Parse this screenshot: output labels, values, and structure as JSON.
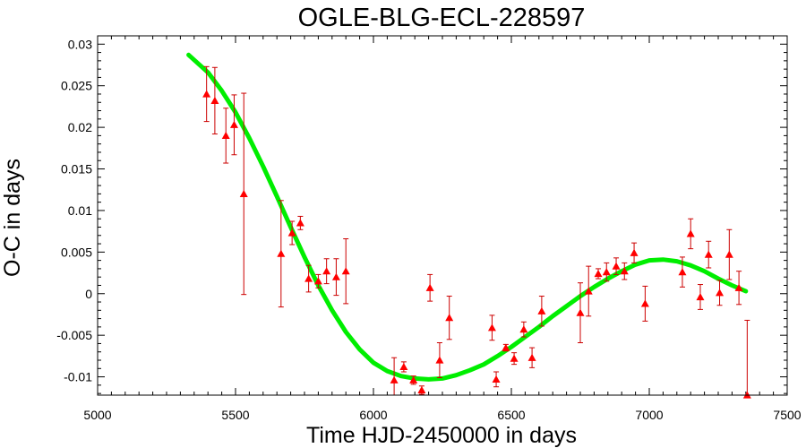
{
  "chart_data": {
    "type": "scatter",
    "title": "OGLE-BLG-ECL-228597",
    "xlabel": "Time HJD-2450000 in days",
    "ylabel": "O-C in days",
    "xlim": [
      5000,
      7500
    ],
    "ylim": [
      -0.0122,
      0.031
    ],
    "x_ticks": [
      5000,
      5500,
      6000,
      6500,
      7000,
      7500
    ],
    "y_ticks": [
      -0.01,
      -0.005,
      0,
      0.005,
      0.01,
      0.015,
      0.02,
      0.025,
      0.03
    ],
    "x_tick_labels": [
      "5000",
      "5500",
      "6000",
      "6500",
      "7000",
      "7500"
    ],
    "y_tick_labels": [
      "-0.01",
      "-0.005",
      "0",
      "0.005",
      "0.01",
      "0.015",
      "0.02",
      "0.025",
      "0.03"
    ],
    "grid": false,
    "colors": {
      "points": "#ff0000",
      "errorbars": "#cc0000",
      "fit": "#00ee00"
    },
    "series": [
      {
        "kind": "points-with-errorbars",
        "marker": "triangle",
        "points": [
          {
            "x": 5395,
            "y": 0.024,
            "err": 0.0033
          },
          {
            "x": 5425,
            "y": 0.0232,
            "err": 0.004
          },
          {
            "x": 5465,
            "y": 0.019,
            "err": 0.0033
          },
          {
            "x": 5495,
            "y": 0.0203,
            "err": 0.0036
          },
          {
            "x": 5530,
            "y": 0.012,
            "err": 0.0121
          },
          {
            "x": 5665,
            "y": 0.0048,
            "err": 0.0064
          },
          {
            "x": 5705,
            "y": 0.0073,
            "err": 0.0014
          },
          {
            "x": 5735,
            "y": 0.0085,
            "err": 0.0008
          },
          {
            "x": 5765,
            "y": 0.0018,
            "err": 0.0016
          },
          {
            "x": 5800,
            "y": 0.0015,
            "err": 0.0008
          },
          {
            "x": 5830,
            "y": 0.0027,
            "err": 0.0015
          },
          {
            "x": 5865,
            "y": 0.002,
            "err": 0.0022
          },
          {
            "x": 5900,
            "y": 0.0027,
            "err": 0.0039
          },
          {
            "x": 6075,
            "y": -0.0104,
            "err": 0.0027
          },
          {
            "x": 6110,
            "y": -0.0088,
            "err": 0.0006
          },
          {
            "x": 6145,
            "y": -0.0104,
            "err": 0.0005
          },
          {
            "x": 6175,
            "y": -0.0116,
            "err": 0.0005
          },
          {
            "x": 6205,
            "y": 0.0007,
            "err": 0.0016
          },
          {
            "x": 6240,
            "y": -0.008,
            "err": 0.0021
          },
          {
            "x": 6275,
            "y": -0.0029,
            "err": 0.0026
          },
          {
            "x": 6430,
            "y": -0.0041,
            "err": 0.0015
          },
          {
            "x": 6445,
            "y": -0.0103,
            "err": 0.0009
          },
          {
            "x": 6480,
            "y": -0.0065,
            "err": 0.0004
          },
          {
            "x": 6510,
            "y": -0.0078,
            "err": 0.0007
          },
          {
            "x": 6545,
            "y": -0.0043,
            "err": 0.0009
          },
          {
            "x": 6575,
            "y": -0.0077,
            "err": 0.0012
          },
          {
            "x": 6610,
            "y": -0.0021,
            "err": 0.0018
          },
          {
            "x": 6750,
            "y": -0.0023,
            "err": 0.0036
          },
          {
            "x": 6780,
            "y": 0.0003,
            "err": 0.003
          },
          {
            "x": 6815,
            "y": 0.0024,
            "err": 0.0006
          },
          {
            "x": 6845,
            "y": 0.0026,
            "err": 0.0011
          },
          {
            "x": 6880,
            "y": 0.0033,
            "err": 0.001
          },
          {
            "x": 6910,
            "y": 0.0027,
            "err": 0.001
          },
          {
            "x": 6945,
            "y": 0.0049,
            "err": 0.0012
          },
          {
            "x": 6985,
            "y": -0.0012,
            "err": 0.0021
          },
          {
            "x": 7120,
            "y": 0.0026,
            "err": 0.0018
          },
          {
            "x": 7150,
            "y": 0.0072,
            "err": 0.0018
          },
          {
            "x": 7185,
            "y": -0.0004,
            "err": 0.0015
          },
          {
            "x": 7215,
            "y": 0.0047,
            "err": 0.0016
          },
          {
            "x": 7255,
            "y": 0.0001,
            "err": 0.0015
          },
          {
            "x": 7290,
            "y": 0.0047,
            "err": 0.003
          },
          {
            "x": 7325,
            "y": 0.0007,
            "err": 0.002
          },
          {
            "x": 7355,
            "y": -0.0122,
            "err": 0.009
          }
        ]
      },
      {
        "kind": "fit-curve",
        "x": [
          5330,
          5400,
          5450,
          5500,
          5550,
          5600,
          5650,
          5700,
          5750,
          5800,
          5850,
          5900,
          5950,
          6000,
          6050,
          6100,
          6150,
          6200,
          6250,
          6300,
          6350,
          6400,
          6450,
          6500,
          6550,
          6600,
          6650,
          6700,
          6750,
          6800,
          6850,
          6900,
          6950,
          7000,
          7050,
          7100,
          7150,
          7200,
          7250,
          7300,
          7350
        ],
        "y": [
          0.0287,
          0.0266,
          0.0244,
          0.0218,
          0.0187,
          0.0153,
          0.0117,
          0.008,
          0.0044,
          0.001,
          -0.002,
          -0.0046,
          -0.0067,
          -0.0083,
          -0.0093,
          -0.0099,
          -0.0102,
          -0.0103,
          -0.0102,
          -0.0098,
          -0.0092,
          -0.0085,
          -0.0075,
          -0.0064,
          -0.0052,
          -0.004,
          -0.0027,
          -0.0015,
          -0.0003,
          0.0008,
          0.0018,
          0.0027,
          0.0035,
          0.004,
          0.0041,
          0.0039,
          0.0034,
          0.0027,
          0.0018,
          0.001,
          0.0003
        ]
      }
    ]
  }
}
